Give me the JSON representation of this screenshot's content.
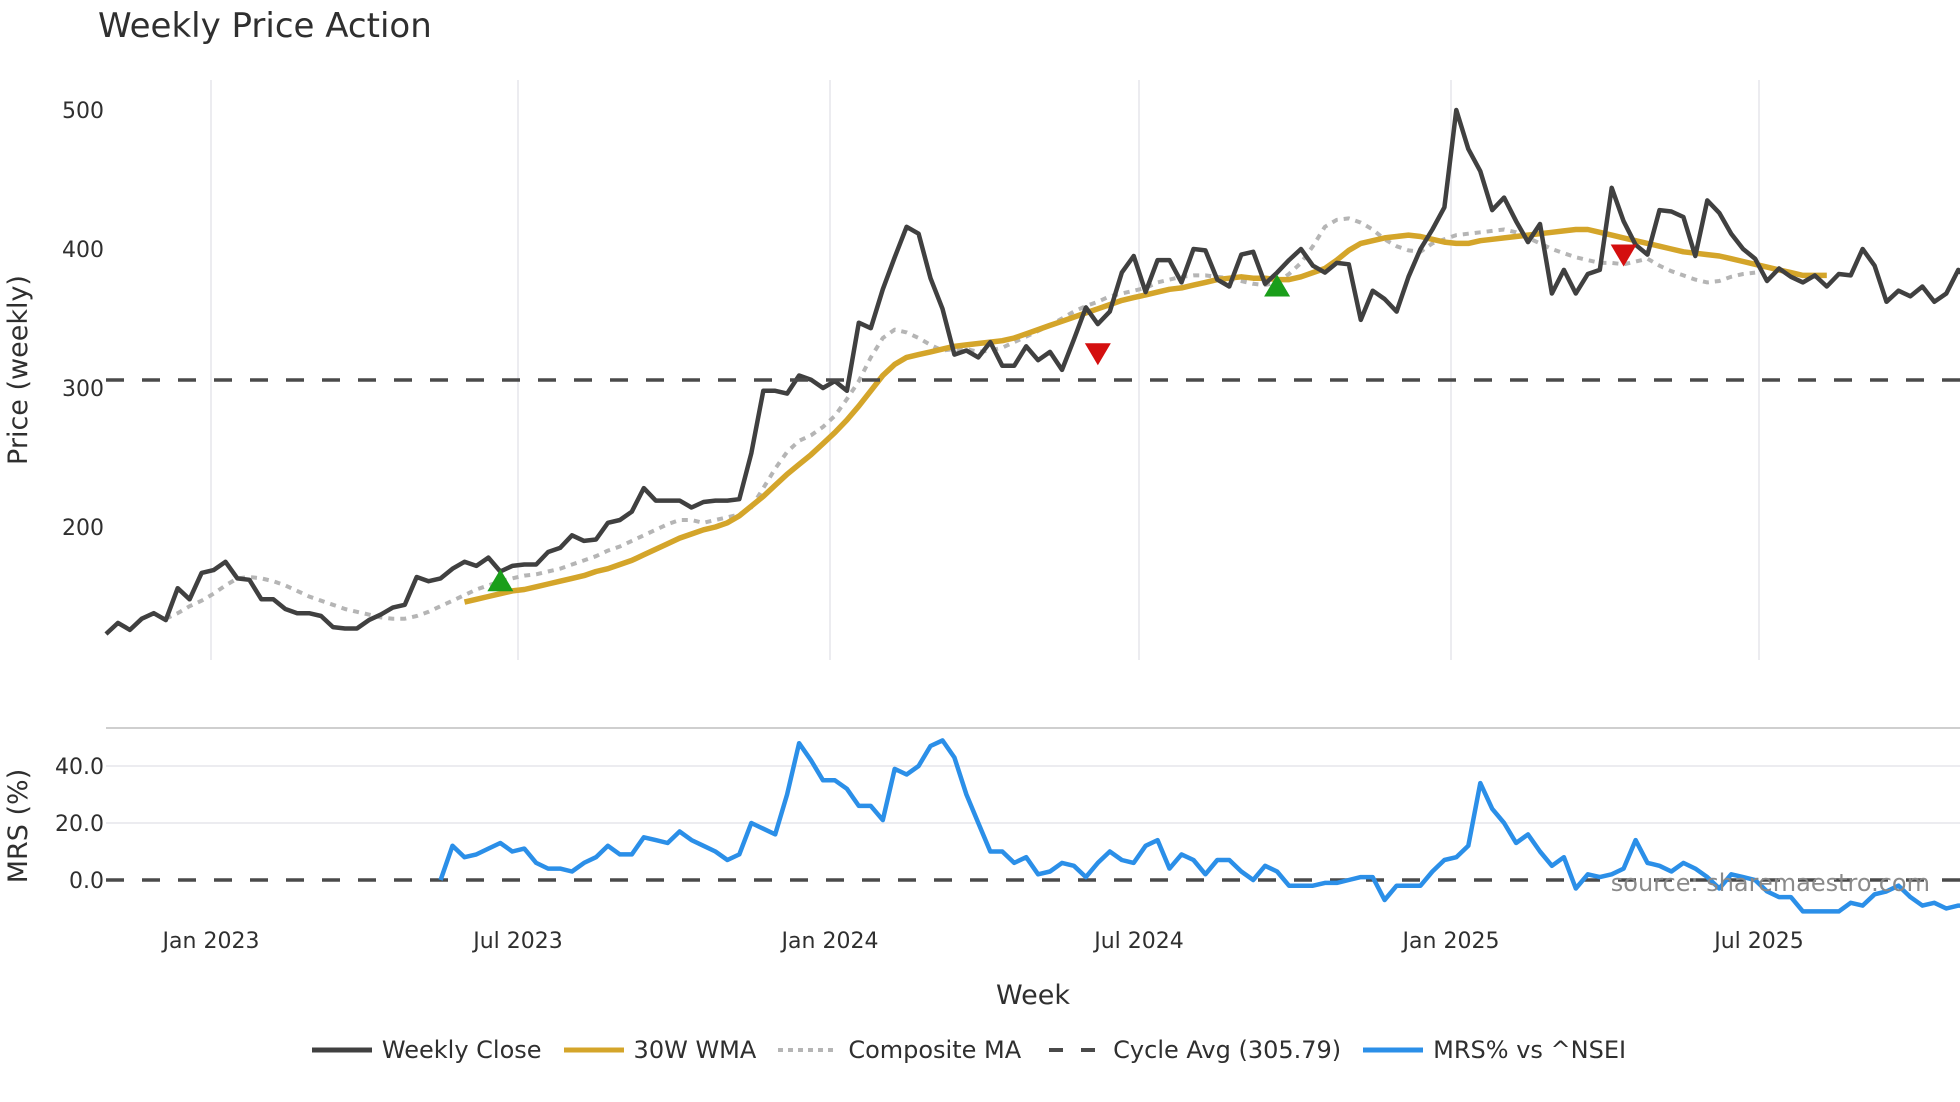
{
  "title": "Weekly Price Action",
  "chart_data": {
    "type": "line",
    "title": "Weekly Price Action",
    "xlabel": "Week",
    "x_ticks": [
      "Jan 2023",
      "Jul 2023",
      "Jan 2024",
      "Jul 2024",
      "Jan 2025",
      "Jul 2025"
    ],
    "x_start": "2022-11-21",
    "x_interval": "weekly",
    "panels": [
      {
        "name": "price",
        "ylabel": "Price (weekly)",
        "y_ticks": [
          200,
          300,
          400,
          500
        ],
        "ylim": [
          107,
          525
        ],
        "grid": "vertical",
        "series": [
          {
            "name": "Weekly Close",
            "color": "#404040",
            "style": "solid",
            "values": [
              123,
              131,
              126,
              134,
              138,
              133,
              156,
              148,
              167,
              169,
              175,
              163,
              162,
              148,
              148,
              141,
              138,
              138,
              136,
              128,
              127,
              127,
              133,
              137,
              142,
              144,
              164,
              161,
              163,
              170,
              175,
              172,
              178,
              168,
              172,
              173,
              173,
              182,
              185,
              194,
              190,
              191,
              203,
              205,
              211,
              228,
              219,
              219,
              219,
              214,
              218,
              219,
              219,
              220,
              253,
              298,
              298,
              296,
              309,
              306,
              300,
              305,
              298,
              347,
              343,
              371,
              394,
              416,
              411,
              379,
              357,
              324,
              327,
              322,
              333,
              316,
              316,
              330,
              320,
              326,
              313,
              335,
              358,
              346,
              355,
              383,
              395,
              369,
              392,
              392,
              376,
              400,
              399,
              378,
              373,
              396,
              398,
              375,
              383,
              392,
              400,
              388,
              383,
              390,
              389,
              349,
              370,
              364,
              355,
              380,
              400,
              414,
              430,
              500,
              472,
              456,
              428,
              437,
              420,
              405,
              418,
              368,
              385,
              368,
              382,
              385,
              444,
              420,
              403,
              396,
              428,
              427,
              423,
              395,
              435,
              426,
              411,
              400,
              393,
              377,
              386,
              380,
              376,
              381,
              373,
              382,
              381,
              400,
              388,
              362,
              370,
              366,
              373,
              362,
              368,
              385,
              377,
              386,
              384
            ]
          },
          {
            "name": "30W WMA",
            "color": "#D4A52A",
            "style": "solid",
            "start_index": 30,
            "values": [
              146,
              148,
              150,
              152,
              154,
              155,
              157,
              159,
              161,
              163,
              165,
              168,
              170,
              173,
              176,
              180,
              184,
              188,
              192,
              195,
              198,
              200,
              203,
              208,
              215,
              222,
              230,
              238,
              245,
              252,
              260,
              268,
              277,
              287,
              298,
              309,
              317,
              322,
              324,
              326,
              328,
              330,
              331,
              332,
              333,
              334,
              336,
              339,
              342,
              345,
              348,
              351,
              354,
              357,
              360,
              363,
              365,
              367,
              369,
              371,
              372,
              374,
              376,
              378,
              379,
              380,
              379,
              379,
              378,
              378,
              380,
              383,
              386,
              392,
              399,
              404,
              406,
              408,
              409,
              410,
              409,
              407,
              405,
              404,
              404,
              406,
              407,
              408,
              409,
              410,
              411,
              412,
              413,
              414,
              414,
              412,
              410,
              408,
              406,
              404,
              402,
              400,
              398,
              397,
              396,
              395,
              393,
              391,
              389,
              387,
              385,
              383,
              381,
              381,
              381
            ]
          },
          {
            "name": "Composite MA",
            "color": "#b5b5b5",
            "style": "dotted",
            "start_index": 5,
            "values": [
              134,
              138,
              143,
              147,
              152,
              158,
              163,
              164,
              163,
              161,
              158,
              154,
              150,
              147,
              144,
              141,
              139,
              137,
              135,
              134,
              134,
              136,
              139,
              143,
              147,
              151,
              155,
              158,
              161,
              163,
              165,
              166,
              168,
              170,
              173,
              176,
              179,
              183,
              186,
              190,
              194,
              198,
              202,
              205,
              205,
              203,
              205,
              207,
              209,
              214,
              228,
              242,
              254,
              262,
              266,
              272,
              280,
              292,
              305,
              322,
              336,
              342,
              340,
              336,
              331,
              327,
              328,
              328,
              326,
              327,
              329,
              333,
              337,
              341,
              345,
              350,
              355,
              359,
              362,
              366,
              368,
              370,
              372,
              376,
              378,
              380,
              381,
              381,
              380,
              379,
              377,
              375,
              374,
              376,
              382,
              390,
              402,
              416,
              421,
              422,
              419,
              414,
              407,
              402,
              399,
              398,
              404,
              407,
              410,
              411,
              412,
              413,
              414,
              412,
              408,
              404,
              400,
              397,
              394,
              392,
              390,
              390,
              389,
              391,
              393,
              388,
              384,
              381,
              378,
              376,
              377,
              380,
              382,
              383
            ]
          },
          {
            "name": "Cycle Avg (305.79)",
            "color": "#4a4a4a",
            "style": "dashed",
            "constant": 305.79
          }
        ],
        "markers": [
          {
            "type": "buy",
            "shape": "triangle-up",
            "color": "#1a9e1a",
            "week_index": 33,
            "value": 161
          },
          {
            "type": "sell",
            "shape": "triangle-down",
            "color": "#d40f0f",
            "week_index": 83,
            "value": 325
          },
          {
            "type": "buy",
            "shape": "triangle-up",
            "color": "#1a9e1a",
            "week_index": 98,
            "value": 373
          },
          {
            "type": "sell",
            "shape": "triangle-down",
            "color": "#d40f0f",
            "week_index": 127,
            "value": 396
          }
        ]
      },
      {
        "name": "mrs",
        "ylabel": "MRS (%)",
        "y_ticks": [
          0.0,
          20.0,
          40.0
        ],
        "ylim": [
          -14,
          53
        ],
        "series": [
          {
            "name": "MRS% vs ^NSEI",
            "color": "#2B8FE8",
            "style": "solid",
            "start_index": 28,
            "values": [
              0,
              12,
              8,
              9,
              11,
              13,
              10,
              11,
              6,
              4,
              4,
              3,
              6,
              8,
              12,
              9,
              9,
              15,
              14,
              13,
              17,
              14,
              12,
              10,
              7,
              9,
              20,
              18,
              16,
              30,
              48,
              42,
              35,
              35,
              32,
              26,
              26,
              21,
              39,
              37,
              40,
              47,
              49,
              43,
              30,
              20,
              10,
              10,
              6,
              8,
              2,
              3,
              6,
              5,
              1,
              6,
              10,
              7,
              6,
              12,
              14,
              4,
              9,
              7,
              2,
              7,
              7,
              3,
              0,
              5,
              3,
              -2,
              -2,
              -2,
              -1,
              -1,
              0,
              1,
              1,
              -7,
              -2,
              -2,
              -2,
              3,
              7,
              8,
              12,
              34,
              25,
              20,
              13,
              16,
              10,
              5,
              8,
              -3,
              2,
              1,
              2,
              4,
              14,
              6,
              5,
              3,
              6,
              4,
              1,
              -3,
              2,
              1,
              0,
              -4,
              -6,
              -6,
              -11,
              -11,
              -11,
              -11,
              -8,
              -9,
              -5,
              -4,
              -2,
              -6,
              -9,
              -8,
              -10,
              -9,
              -9,
              -8,
              -6,
              -8,
              -7,
              -7
            ]
          },
          {
            "name": "zero-line",
            "color": "#4a4a4a",
            "style": "dashed",
            "constant": 0
          }
        ]
      }
    ],
    "legend": {
      "position": "bottom",
      "entries": [
        "Weekly Close",
        "30W WMA",
        "Composite MA",
        "Cycle Avg (305.79)",
        "MRS% vs ^NSEI"
      ]
    },
    "annotations": [
      "source: sharemaestro.com"
    ]
  },
  "axes": {
    "price_ylabel": "Price (weekly)",
    "mrs_ylabel": "MRS (%)",
    "xlabel": "Week",
    "price_ticks": [
      "500",
      "400",
      "300",
      "200"
    ],
    "mrs_ticks": [
      "40.0",
      "20.0",
      "0.0"
    ],
    "x_ticks": [
      "Jan 2023",
      "Jul 2023",
      "Jan 2024",
      "Jul 2024",
      "Jan 2025",
      "Jul 2025"
    ]
  },
  "legend": {
    "items": [
      {
        "label": "Weekly Close",
        "color": "#404040",
        "style": "solid"
      },
      {
        "label": "30W WMA",
        "color": "#D4A52A",
        "style": "solid"
      },
      {
        "label": "Composite MA",
        "color": "#b5b5b5",
        "style": "dotted"
      },
      {
        "label": "Cycle Avg (305.79)",
        "color": "#4a4a4a",
        "style": "dashed"
      },
      {
        "label": "MRS% vs ^NSEI",
        "color": "#2B8FE8",
        "style": "solid"
      }
    ]
  },
  "watermark": "source: sharemaestro.com"
}
